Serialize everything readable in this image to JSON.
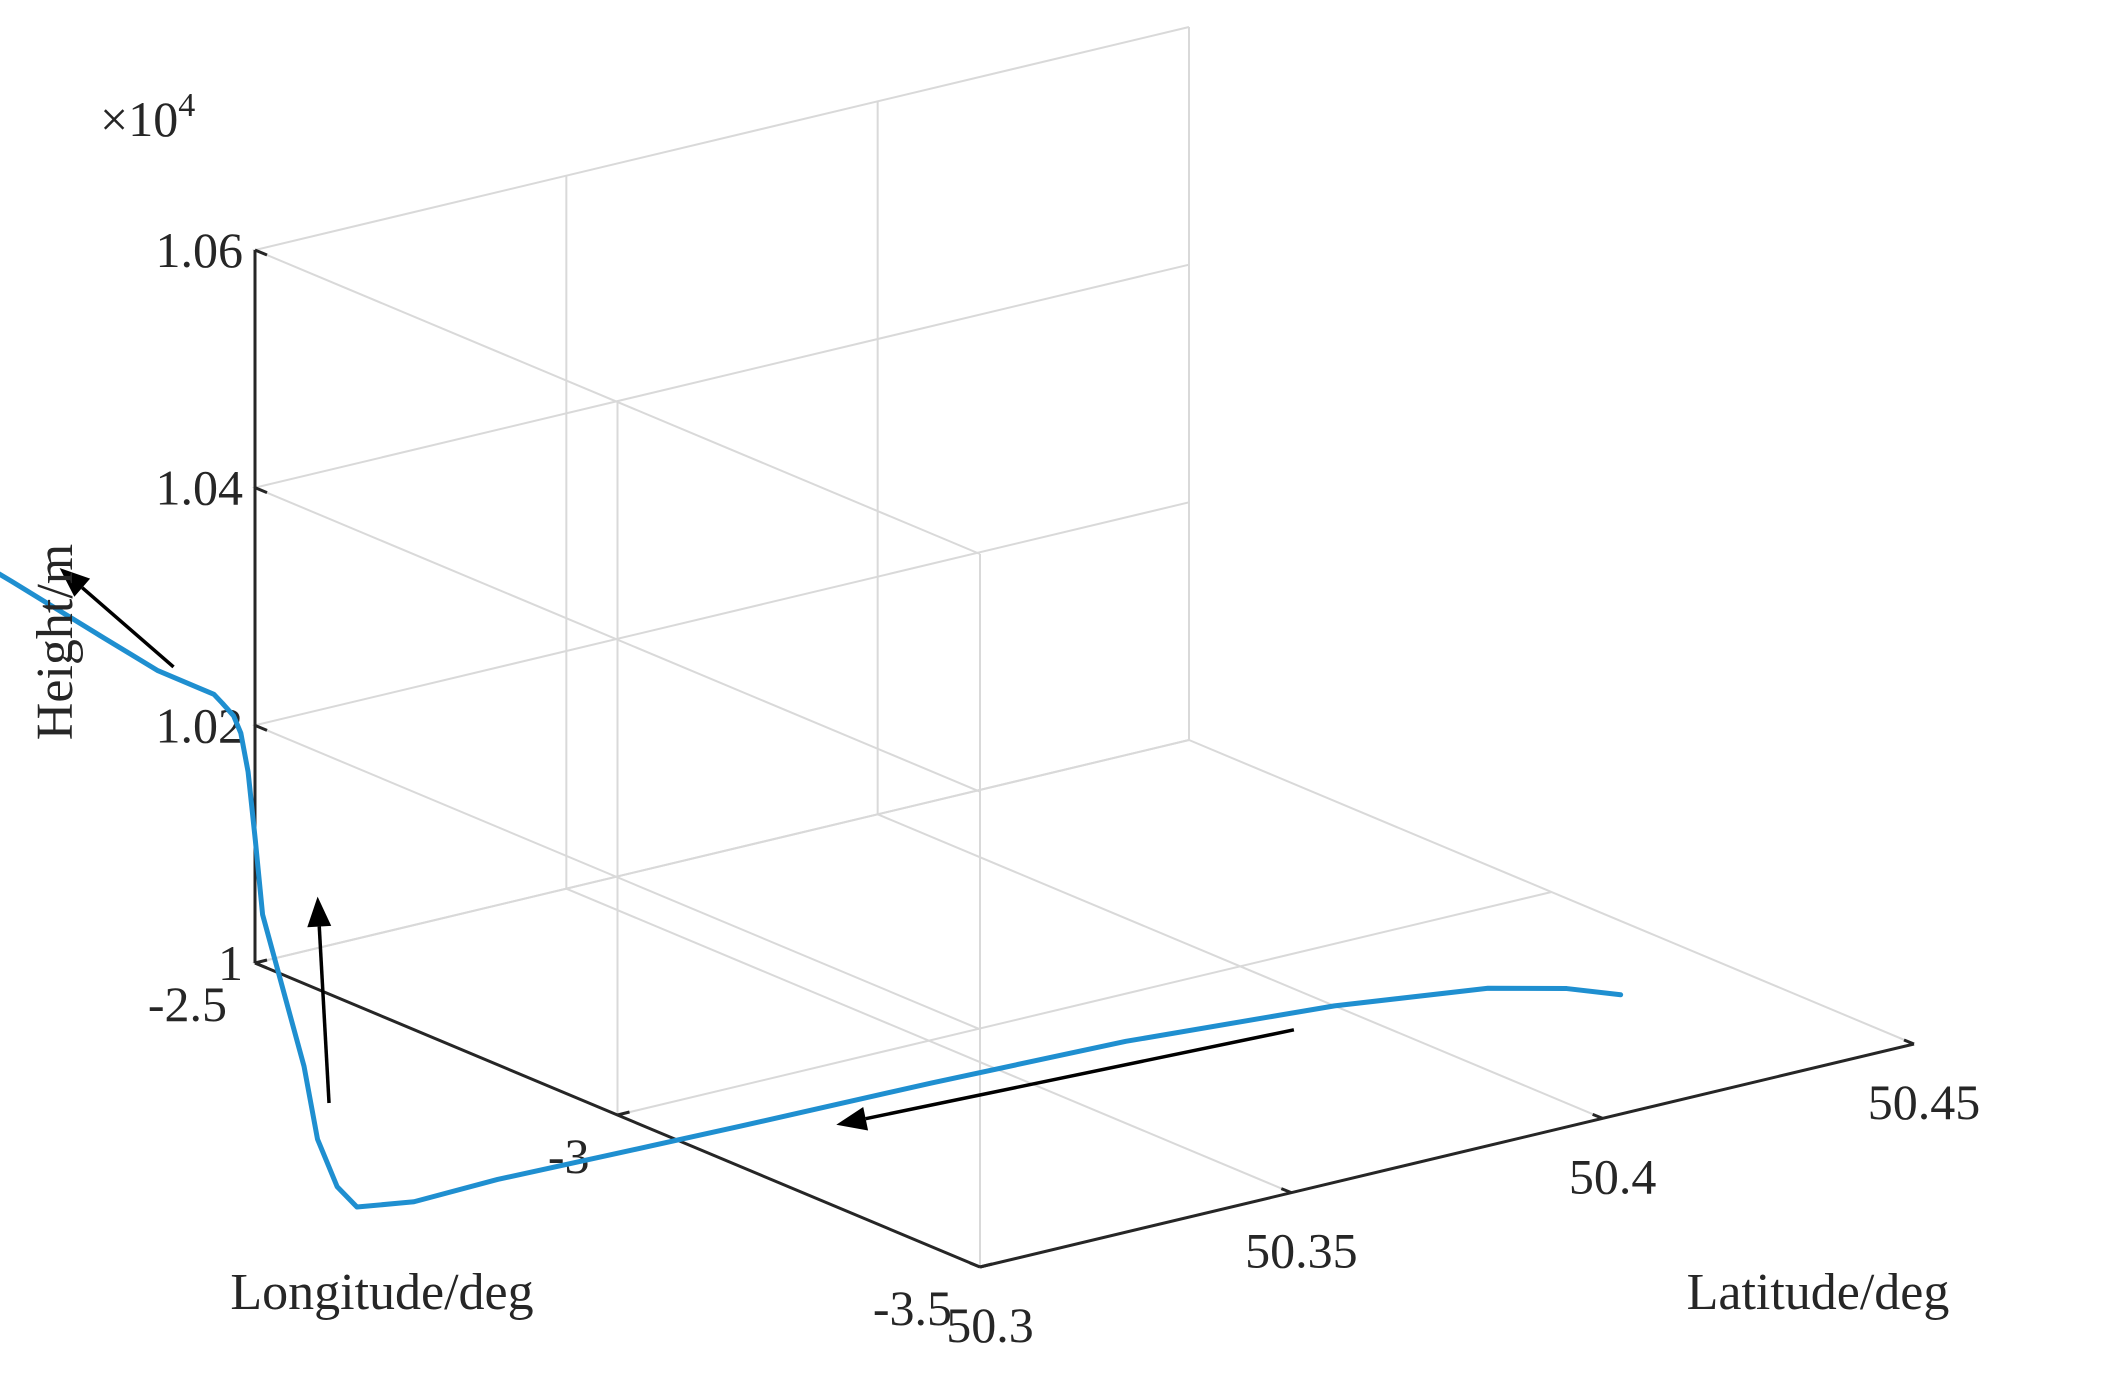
{
  "chart_data": {
    "type": "line3d",
    "xlabel": "Latitude/deg",
    "ylabel": "Longitude/deg",
    "zlabel": "Height/m",
    "z_multiplier": "×10",
    "z_multiplier_exp": "4",
    "xlim": [
      50.3,
      50.45
    ],
    "ylim": [
      -3.5,
      -2.5
    ],
    "zlim": [
      1.0,
      1.06
    ],
    "x_ticks": [
      {
        "v": 50.3,
        "label": "50.3"
      },
      {
        "v": 50.35,
        "label": "50.35"
      },
      {
        "v": 50.4,
        "label": "50.4"
      },
      {
        "v": 50.45,
        "label": "50.45"
      }
    ],
    "y_ticks": [
      {
        "v": -2.5,
        "label": "-2.5"
      },
      {
        "v": -3.0,
        "label": "-3"
      },
      {
        "v": -3.5,
        "label": "-3.5"
      }
    ],
    "z_ticks": [
      {
        "v": 1.0,
        "label": "1"
      },
      {
        "v": 1.02,
        "label": "1.02"
      },
      {
        "v": 1.04,
        "label": "1.04"
      },
      {
        "v": 1.06,
        "label": "1.06"
      }
    ],
    "grid": true,
    "line_color": "#1f8fd0",
    "series": [
      {
        "points": [
          [
            50.432,
            -3.25,
            1.0
          ],
          [
            50.428,
            -3.21,
            1.0
          ],
          [
            50.42,
            -3.17,
            1.0
          ],
          [
            50.4,
            -3.13,
            1.0
          ],
          [
            50.37,
            -3.1,
            1.0
          ],
          [
            50.34,
            -3.09,
            1.0
          ],
          [
            50.31,
            -3.085,
            1.0
          ],
          [
            50.29,
            -3.08,
            1.0
          ],
          [
            50.272,
            -3.075,
            1.0
          ],
          [
            50.258,
            -3.08,
            1.0
          ],
          [
            50.25,
            -3.07,
            1.0003
          ],
          [
            50.248,
            -3.06,
            1.002
          ],
          [
            50.246,
            -3.05,
            1.006
          ],
          [
            50.245,
            -3.04,
            1.012
          ],
          [
            50.244,
            -3.02,
            1.018
          ],
          [
            50.243,
            -3.0,
            1.024
          ],
          [
            50.243,
            -2.99,
            1.03
          ],
          [
            50.243,
            -2.98,
            1.0355
          ],
          [
            50.243,
            -2.97,
            1.0385
          ],
          [
            50.243,
            -2.96,
            1.0397
          ],
          [
            50.2435,
            -2.94,
            1.0402
          ],
          [
            50.2445,
            -2.92,
            1.0403
          ],
          [
            50.2442,
            -2.9,
            1.0404
          ],
          [
            50.2425,
            -2.86,
            1.041
          ],
          [
            50.2402,
            -2.8,
            1.0427
          ],
          [
            50.2377,
            -2.7,
            1.045
          ],
          [
            50.2359,
            -2.6,
            1.0469
          ],
          [
            50.2341,
            -2.5,
            1.0492
          ]
        ]
      }
    ],
    "arrows": [
      {
        "from": [
          50.39,
          -3.16,
          1.0
        ],
        "to": [
          50.32,
          -3.13,
          1.0
        ]
      },
      {
        "from": [
          50.256,
          -2.98,
          1.006
        ],
        "to": [
          50.253,
          -2.99,
          1.024
        ]
      },
      {
        "from": [
          50.245,
          -2.86,
          1.041
        ],
        "to": [
          50.243,
          -2.72,
          1.046
        ]
      }
    ]
  }
}
